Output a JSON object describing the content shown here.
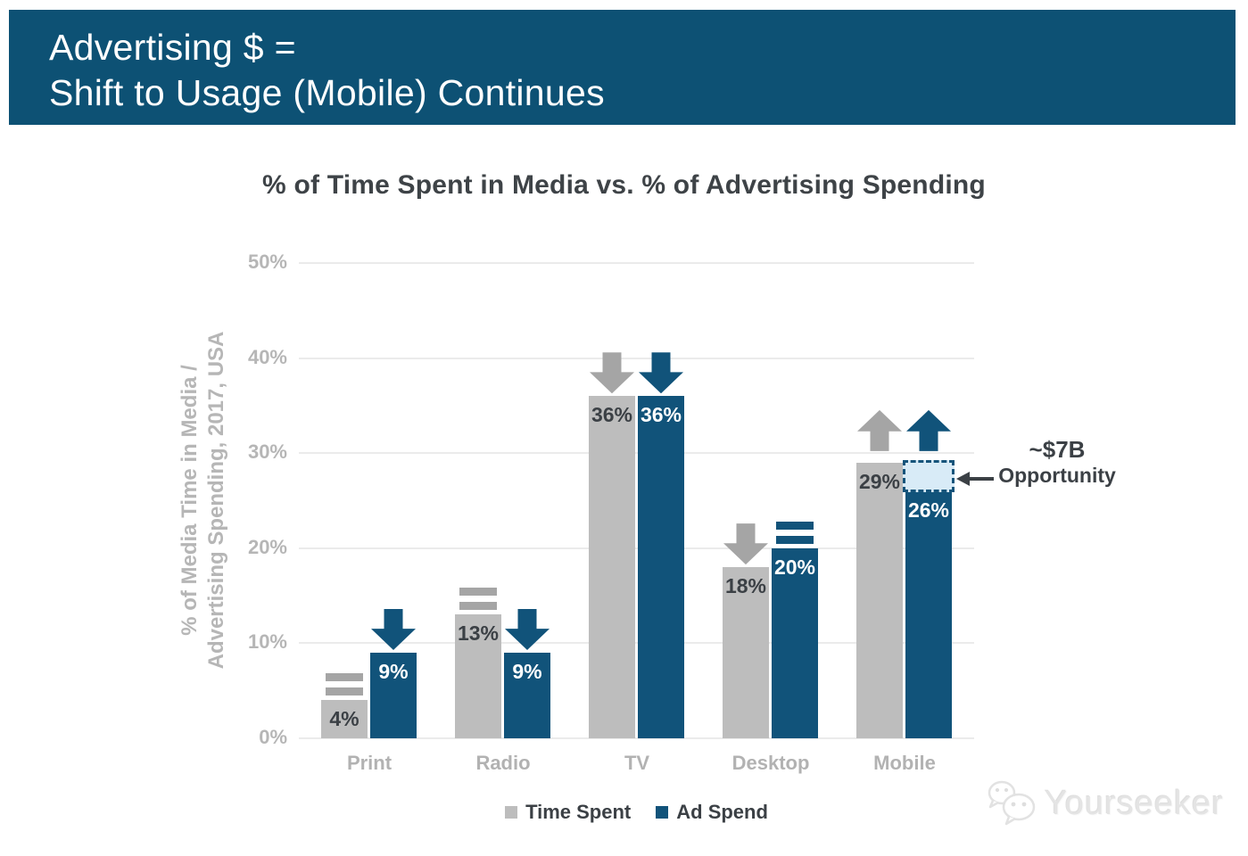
{
  "banner": {
    "line1": "Advertising $ =",
    "line2": "Shift to Usage (Mobile) Continues",
    "bg_color": "#0d5174",
    "text_color": "#ffffff"
  },
  "chart_title": "% of Time Spent in Media vs. % of Advertising Spending",
  "y_axis_title": {
    "line1": "% of Media Time in Media /",
    "line2": "Advertising Spending, 2017, USA"
  },
  "chart_data": {
    "type": "bar",
    "title": "% of Time Spent in Media vs. % of Advertising Spending",
    "xlabel": "",
    "ylabel": "% of Media Time in Media / Advertising Spending, 2017, USA",
    "ylim": [
      0,
      50
    ],
    "grid": "horizontal",
    "legend_position": "bottom",
    "categories": [
      "Print",
      "Radio",
      "TV",
      "Desktop",
      "Mobile"
    ],
    "y_ticks": [
      {
        "value": 0,
        "label": "0%"
      },
      {
        "value": 10,
        "label": "10%"
      },
      {
        "value": 20,
        "label": "20%"
      },
      {
        "value": 30,
        "label": "30%"
      },
      {
        "value": 40,
        "label": "40%"
      },
      {
        "value": 50,
        "label": "50%"
      }
    ],
    "series": [
      {
        "name": "Time Spent",
        "color": "#bdbdbd",
        "indicator_color": "#a5a5a5",
        "label_color": "#3b4045",
        "values": [
          4,
          13,
          36,
          18,
          29
        ],
        "labels": [
          "4%",
          "13%",
          "36%",
          "18%",
          "29%"
        ],
        "trends": [
          "flat",
          "flat",
          "down",
          "down",
          "up"
        ]
      },
      {
        "name": "Ad Spend",
        "color": "#11537a",
        "indicator_color": "#11537a",
        "label_color": "#ffffff",
        "values": [
          9,
          9,
          36,
          20,
          26
        ],
        "labels": [
          "9%",
          "9%",
          "36%",
          "20%",
          "26%"
        ],
        "trends": [
          "down",
          "down",
          "down",
          "flat",
          "up"
        ]
      }
    ],
    "annotation": {
      "line1": "~$7B",
      "line2": "Opportunity",
      "box": {
        "category": "Mobile",
        "series": "Ad Spend",
        "from_value": 26,
        "to_value": 29,
        "fill": "#d8ebf7",
        "border": "#15547b"
      }
    }
  },
  "legend": [
    {
      "label": "Time Spent",
      "color": "#bdbdbd"
    },
    {
      "label": "Ad Spend",
      "color": "#11537a"
    }
  ],
  "watermark": {
    "text": "Yourseeker"
  }
}
